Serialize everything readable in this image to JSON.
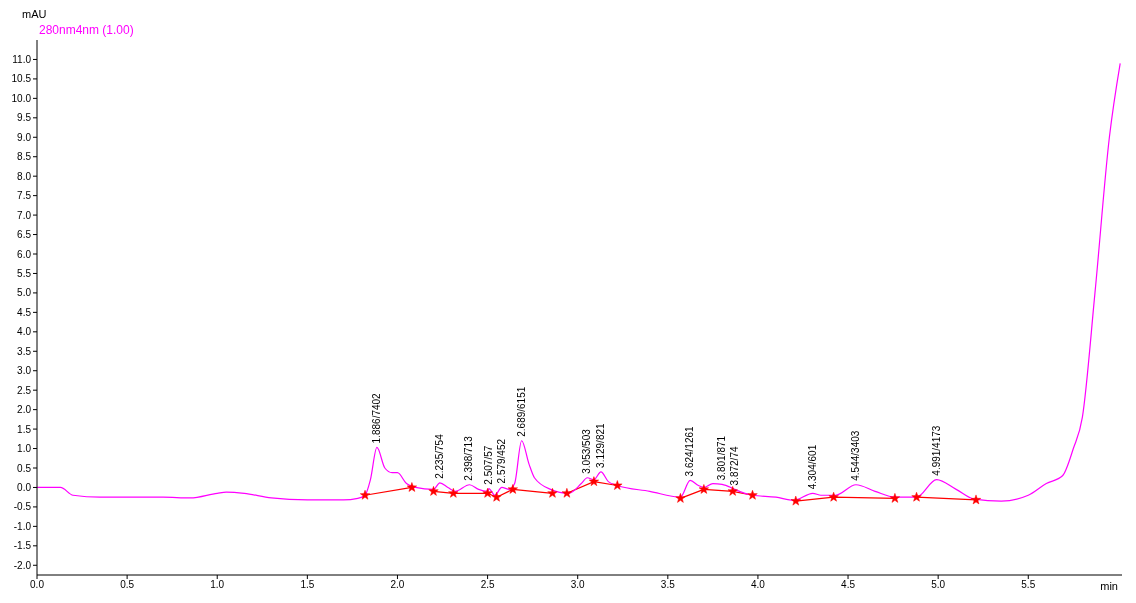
{
  "chart_data": {
    "type": "line",
    "xlabel": "min",
    "ylabel": "mAU",
    "xlim": [
      0,
      6.02
    ],
    "ylim": [
      -2.25,
      11.5
    ],
    "xticks": [
      {
        "value": 0,
        "label": "0.0"
      },
      {
        "value": 0.5,
        "label": "0.5"
      },
      {
        "value": 1,
        "label": "1.0"
      },
      {
        "value": 1.5,
        "label": "1.5"
      },
      {
        "value": 2,
        "label": "2.0"
      },
      {
        "value": 2.5,
        "label": "2.5"
      },
      {
        "value": 3,
        "label": "3.0"
      },
      {
        "value": 3.5,
        "label": "3.5"
      },
      {
        "value": 4,
        "label": "4.0"
      },
      {
        "value": 4.5,
        "label": "4.5"
      },
      {
        "value": 5,
        "label": "5.0"
      },
      {
        "value": 5.5,
        "label": "5.5"
      }
    ],
    "yticks": [
      {
        "value": -2,
        "label": "-2.0"
      },
      -1.5,
      {
        "value": -1,
        "label": "-1.0"
      },
      -0.5,
      {
        "value": 0,
        "label": "0.0"
      },
      0.5,
      {
        "value": 1,
        "label": "1.0"
      },
      1.5,
      {
        "value": 2,
        "label": "2.0"
      },
      2.5,
      {
        "value": 3,
        "label": "3.0"
      },
      3.5,
      {
        "value": 4,
        "label": "4.0"
      },
      4.5,
      {
        "value": 5,
        "label": "5.0"
      },
      5.5,
      {
        "value": 6,
        "label": "6.0"
      },
      6.5,
      {
        "value": 7,
        "label": "7.0"
      },
      7.5,
      {
        "value": 8,
        "label": "8.0"
      },
      8.5,
      {
        "value": 9,
        "label": "9.0"
      },
      9.5,
      {
        "value": 10,
        "label": "10.0"
      },
      10.5,
      {
        "value": 11,
        "label": "11.0"
      }
    ],
    "grid": false,
    "legend": "top left",
    "line_style": "solid",
    "marker": "none",
    "series": [
      {
        "name": "280nm4nm (1.00)",
        "color": "#ff00ff",
        "x": [
          0,
          0.13,
          0.2,
          0.35,
          0.5,
          0.7,
          0.85,
          1.0,
          1.05,
          1.15,
          1.3,
          1.5,
          1.7,
          1.78,
          1.82,
          1.85,
          1.886,
          1.93,
          1.97,
          2.0,
          2.05,
          2.1,
          2.2,
          2.235,
          2.28,
          2.32,
          2.4,
          2.45,
          2.5,
          2.507,
          2.54,
          2.579,
          2.62,
          2.65,
          2.689,
          2.73,
          2.76,
          2.85,
          2.95,
          3.02,
          3.053,
          3.09,
          3.129,
          3.17,
          3.22,
          3.4,
          3.57,
          3.624,
          3.67,
          3.7,
          3.75,
          3.801,
          3.85,
          3.872,
          3.97,
          4.1,
          4.2,
          4.304,
          4.35,
          4.43,
          4.544,
          4.65,
          4.76,
          4.88,
          4.991,
          5.1,
          5.2,
          5.35,
          5.5,
          5.6,
          5.69,
          5.75,
          5.8,
          5.87,
          5.95,
          6.01
        ],
        "values": [
          0,
          0,
          -0.2,
          -0.25,
          -0.25,
          -0.25,
          -0.27,
          -0.15,
          -0.12,
          -0.15,
          -0.27,
          -0.32,
          -0.32,
          -0.28,
          -0.2,
          0.2,
          1.03,
          0.5,
          0.38,
          0.38,
          0.1,
          0,
          -0.05,
          0.12,
          0,
          -0.1,
          0.07,
          -0.05,
          -0.1,
          -0.03,
          -0.2,
          0,
          -0.05,
          0.1,
          1.2,
          0.6,
          0.25,
          -0.05,
          -0.15,
          0.1,
          0.25,
          0.2,
          0.4,
          0.15,
          0.05,
          -0.1,
          -0.25,
          0.18,
          0.05,
          0,
          0.1,
          0.08,
          0,
          -0.05,
          -0.2,
          -0.25,
          -0.33,
          -0.15,
          -0.2,
          -0.2,
          0.07,
          -0.1,
          -0.25,
          -0.25,
          0.2,
          -0.05,
          -0.3,
          -0.35,
          -0.2,
          0.1,
          0.3,
          1.0,
          1.8,
          5.0,
          9.0,
          10.9
        ]
      },
      {
        "type": "line",
        "color": "#ff0000",
        "marker": "star",
        "x": [
          1.82,
          2.08,
          2.14,
          2.2,
          2.31,
          2.5,
          2.55,
          2.64,
          2.86,
          2.9,
          2.94,
          3.09,
          3.22,
          3.4,
          3.57,
          3.7,
          3.86,
          3.97,
          4.1,
          4.21,
          4.42,
          4.76,
          4.82,
          4.88,
          5.21
        ],
        "values": [
          -0.2,
          0,
          null,
          -0.1,
          -0.15,
          -0.15,
          -0.25,
          -0.05,
          -0.15,
          null,
          -0.15,
          0.15,
          0.05,
          null,
          -0.28,
          -0.05,
          -0.1,
          -0.2,
          null,
          -0.35,
          -0.25,
          -0.28,
          null,
          -0.25,
          -0.32
        ]
      }
    ],
    "annotations": [
      {
        "text": "1.886/7402",
        "x": 1.886,
        "y": 1.03
      },
      {
        "text": "2.235/754",
        "x": 2.235,
        "y": 0.12
      },
      {
        "text": "2.398/713",
        "x": 2.398,
        "y": 0.07
      },
      {
        "text": "2.507/57",
        "x": 2.507,
        "y": -0.03
      },
      {
        "text": "2.579/452",
        "x": 2.579,
        "y": 0
      },
      {
        "text": "2.689/6151",
        "x": 2.689,
        "y": 1.2
      },
      {
        "text": "3.053/503",
        "x": 3.053,
        "y": 0.25
      },
      {
        "text": "3.129/821",
        "x": 3.129,
        "y": 0.4
      },
      {
        "text": "3.624/1261",
        "x": 3.624,
        "y": 0.18
      },
      {
        "text": "3.801/871",
        "x": 3.801,
        "y": 0.08
      },
      {
        "text": "3.872/74",
        "x": 3.872,
        "y": -0.05
      },
      {
        "text": "4.304/601",
        "x": 4.304,
        "y": -0.15
      },
      {
        "text": "4.544/3403",
        "x": 4.544,
        "y": 0.07
      },
      {
        "text": "4.991/4173",
        "x": 4.991,
        "y": 0.2
      }
    ]
  }
}
